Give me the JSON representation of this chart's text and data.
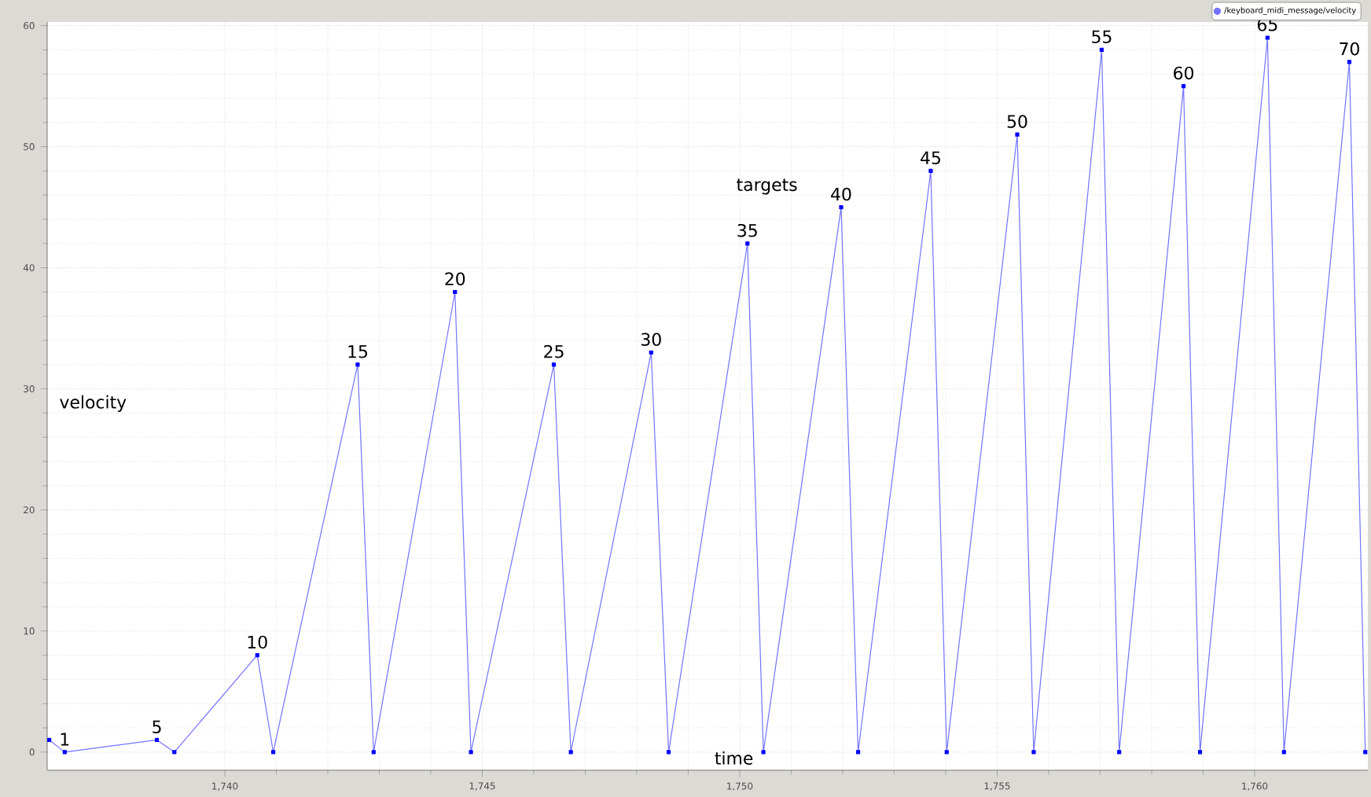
{
  "chart_data": {
    "type": "line",
    "xlabel": "time",
    "ylabel": "velocity",
    "x": [
      1736.59,
      1736.89,
      1738.68,
      1739.02,
      1740.63,
      1740.94,
      1742.58,
      1742.89,
      1744.47,
      1744.78,
      1746.39,
      1746.72,
      1748.28,
      1748.62,
      1750.15,
      1750.46,
      1751.97,
      1752.3,
      1753.71,
      1754.02,
      1755.39,
      1755.71,
      1757.03,
      1757.37,
      1758.62,
      1758.94,
      1760.25,
      1760.57,
      1761.84,
      1762.15
    ],
    "series": [
      {
        "name": "/keyboard_midi_message/velocity",
        "color": "#0000ff",
        "values": [
          1,
          0,
          1,
          0,
          8,
          0,
          32,
          0,
          38,
          0,
          32,
          0,
          33,
          0,
          42,
          0,
          45,
          0,
          48,
          0,
          51,
          0,
          58,
          0,
          55,
          0,
          59,
          0,
          57,
          0
        ]
      }
    ],
    "xlim": [
      1736.55,
      1762.2
    ],
    "ylim": [
      -1.5,
      60.3
    ],
    "xticks": [
      {
        "value": 1740,
        "label": "1,740"
      },
      {
        "value": 1745,
        "label": "1,745"
      },
      {
        "value": 1750,
        "label": "1,750"
      },
      {
        "value": 1755,
        "label": "1,755"
      },
      {
        "value": 1760,
        "label": "1,760"
      }
    ],
    "yticks": [
      0,
      10,
      20,
      30,
      40,
      50,
      60
    ],
    "grid": true,
    "legend": "top right",
    "marker": "square",
    "line_style": "solid",
    "annotations": [
      "targets",
      {
        "text": "1",
        "x": 1736.89,
        "y": 0
      },
      {
        "text": "5",
        "x": 1738.68,
        "y": 1
      },
      {
        "text": "10",
        "x": 1740.63,
        "y": 8
      },
      {
        "text": "15",
        "x": 1742.58,
        "y": 32
      },
      {
        "text": "20",
        "x": 1744.47,
        "y": 38
      },
      {
        "text": "25",
        "x": 1746.39,
        "y": 32
      },
      {
        "text": "30",
        "x": 1748.28,
        "y": 33
      },
      {
        "text": "35",
        "x": 1750.15,
        "y": 42
      },
      {
        "text": "40",
        "x": 1751.97,
        "y": 45
      },
      {
        "text": "45",
        "x": 1753.71,
        "y": 48
      },
      {
        "text": "50",
        "x": 1755.39,
        "y": 51
      },
      {
        "text": "55",
        "x": 1757.03,
        "y": 58
      },
      {
        "text": "60",
        "x": 1758.62,
        "y": 55
      },
      {
        "text": "65",
        "x": 1760.25,
        "y": 59
      },
      {
        "text": "70",
        "x": 1761.84,
        "y": 57
      }
    ]
  }
}
